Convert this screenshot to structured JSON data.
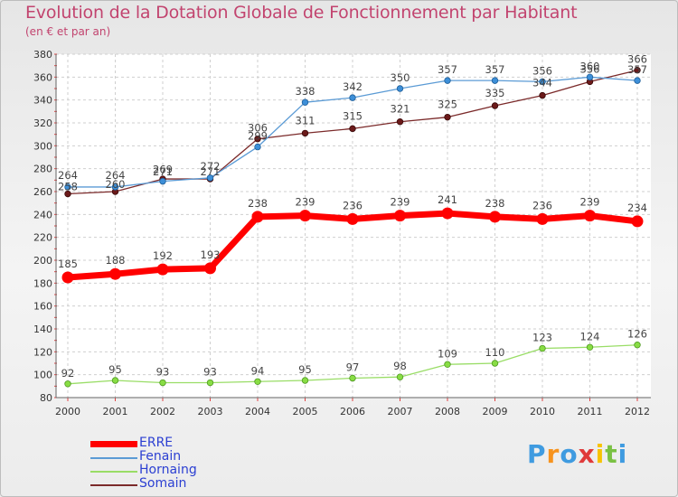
{
  "header": {
    "title": "Evolution de la Dotation Globale de Fonctionnement par Habitant",
    "subtitle": "(en € et par an)"
  },
  "chart_data": {
    "type": "line",
    "title": "Evolution de la Dotation Globale de Fonctionnement par Habitant",
    "subtitle": "(en € et par an)",
    "xlabel": "",
    "ylabel": "",
    "x": [
      "2000",
      "2001",
      "2002",
      "2003",
      "2004",
      "2005",
      "2006",
      "2007",
      "2008",
      "2009",
      "2010",
      "2011",
      "2012"
    ],
    "ylim": [
      80,
      380
    ],
    "yticks": [
      80,
      100,
      120,
      140,
      160,
      180,
      200,
      220,
      240,
      260,
      280,
      300,
      320,
      340,
      360,
      380
    ],
    "grid": true,
    "legend_position": "bottom-left",
    "series": [
      {
        "name": "ERRE",
        "color": "#ff0000",
        "values": [
          185,
          188,
          192,
          193,
          238,
          239,
          236,
          239,
          241,
          238,
          236,
          239,
          234
        ]
      },
      {
        "name": "Fenain",
        "color": "#5b9bd5",
        "values": [
          264,
          264,
          269,
          272,
          299,
          338,
          342,
          350,
          357,
          357,
          356,
          360,
          357
        ]
      },
      {
        "name": "Hornaing",
        "color": "#99dd66",
        "values": [
          92,
          95,
          93,
          93,
          94,
          95,
          97,
          98,
          109,
          110,
          123,
          124,
          126
        ]
      },
      {
        "name": "Somain",
        "color": "#7b2a2a",
        "values": [
          258,
          260,
          271,
          271,
          306,
          311,
          315,
          321,
          325,
          335,
          344,
          356,
          366
        ]
      }
    ]
  },
  "logo": {
    "letters": [
      "P",
      "r",
      "o",
      "x",
      "i",
      "t",
      "i"
    ],
    "colors": [
      "#3f9be0",
      "#f7931e",
      "#3f9be0",
      "#e03a3a",
      "#f7c300",
      "#7ac143",
      "#3f9be0"
    ]
  }
}
